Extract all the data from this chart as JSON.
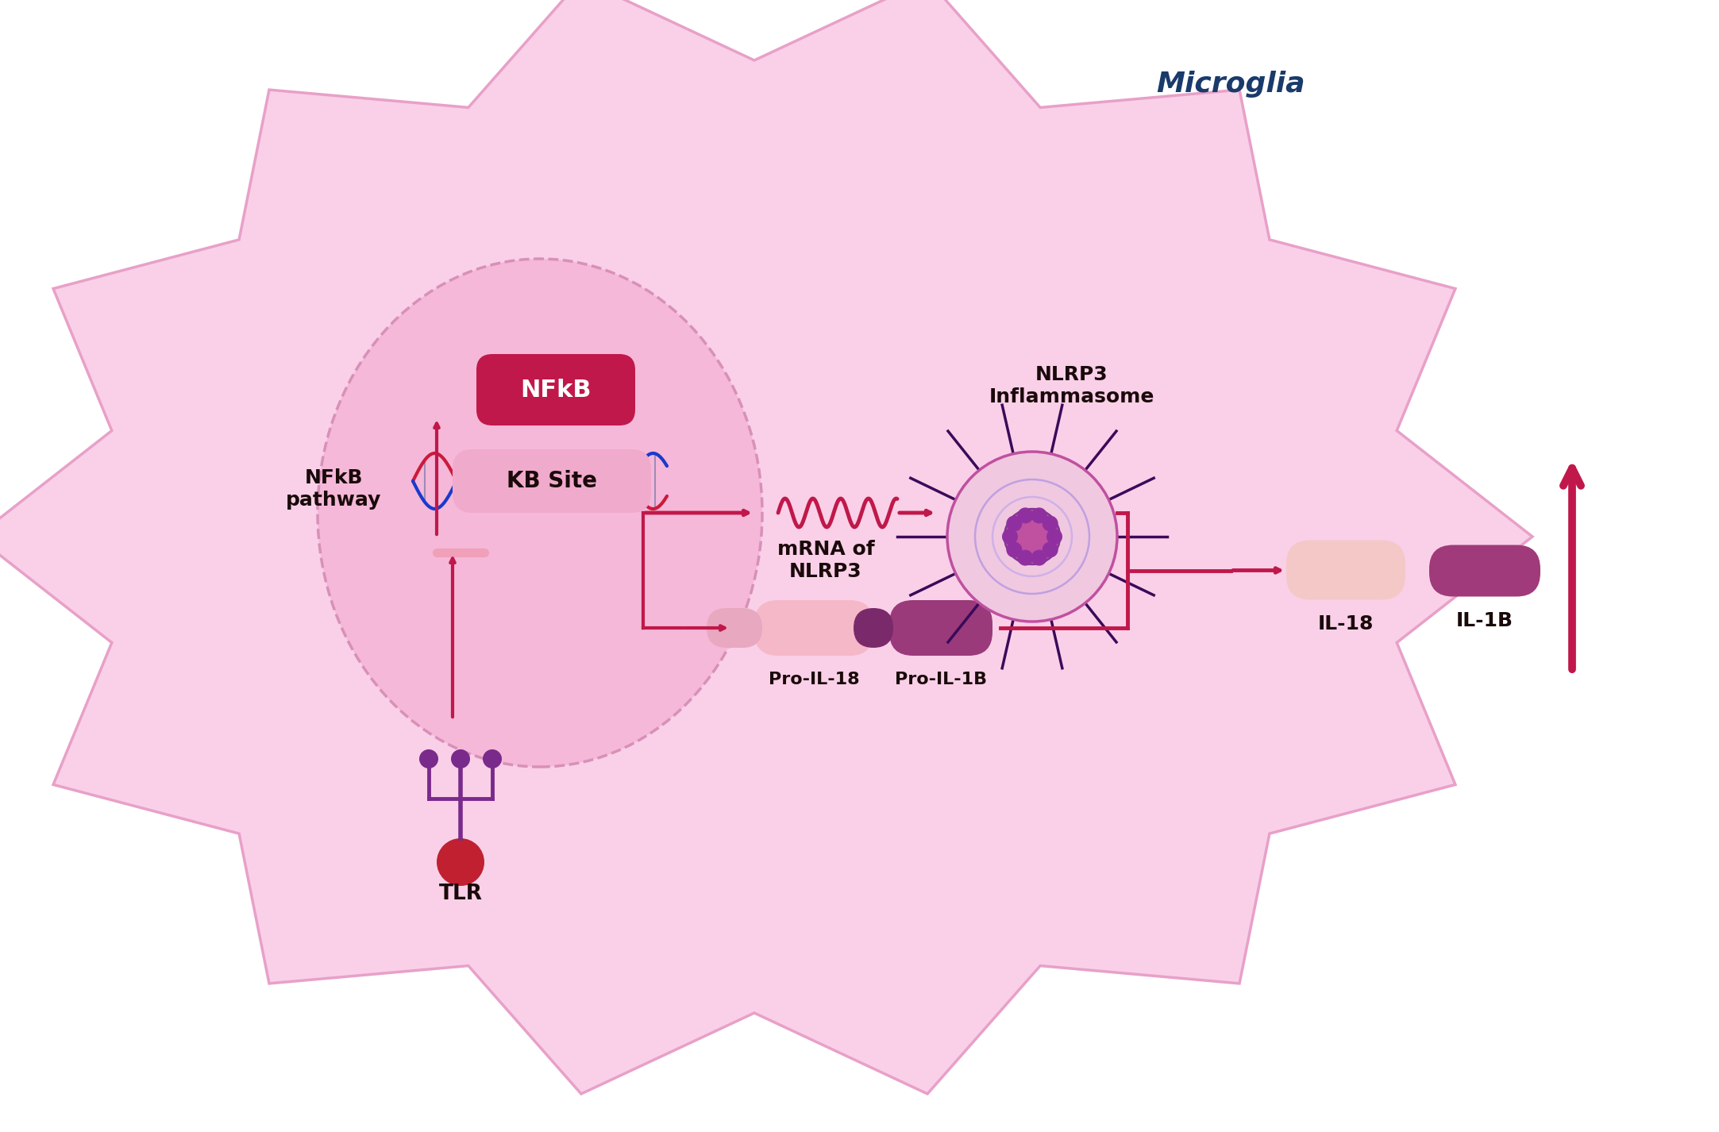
{
  "bg_color": "#ffffff",
  "microglia_label": "Microglia",
  "microglia_label_color": "#1a3a6b",
  "microglia_body_color": "#f9d0e8",
  "microglia_border_color": "#e8a0c8",
  "nucleus_fill": "#f5b8d8",
  "nucleus_border_color": "#d890b8",
  "nfkb_box_color": "#c0184a",
  "nfkb_text": "NFkB",
  "nfkb_text_color": "#ffffff",
  "kb_box_color": "#f0aacc",
  "kb_text": "KB Site",
  "kb_text_color": "#1a0a0a",
  "nfkb_pathway_text": "NFkB\npathway",
  "tlr_text": "TLR",
  "mrna_text": "mRNA of\nNLRP3",
  "nlrp3_text": "NLRP3\nInflammasome",
  "pro_il18_text": "Pro-IL-18",
  "pro_il1b_text": "Pro-IL-1B",
  "il18_text": "IL-18",
  "il1b_text": "IL-1B",
  "arrow_color": "#c0184a",
  "dark_purple": "#5a1a6a",
  "pro_il18_color": "#f5b8c8",
  "pro_il1b_color": "#9a3a7a",
  "il18_color": "#f5c8c8",
  "il1b_color": "#a03a7a",
  "inflammasome_outer": "#e890b8",
  "inflammasome_inner": "#7a3a8a",
  "inflammasome_center": "#d060a0",
  "tlr_color": "#7a2a8a",
  "tlr_base_color": "#c02030"
}
